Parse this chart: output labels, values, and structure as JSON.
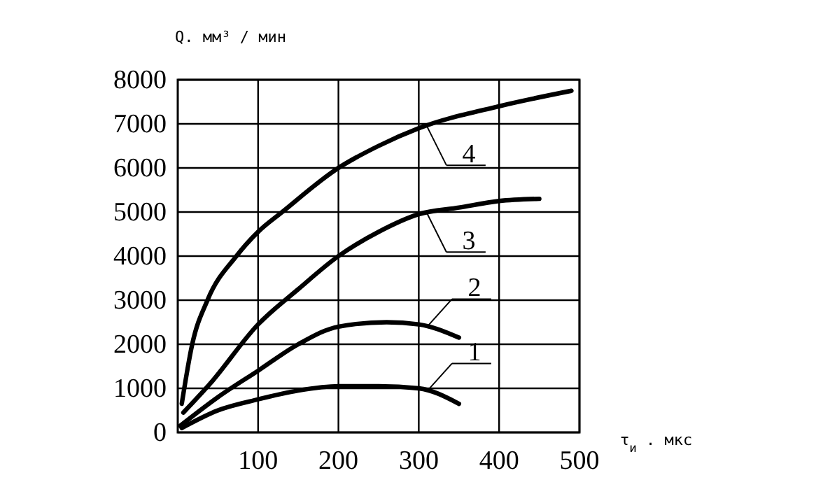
{
  "chart_data": {
    "type": "line",
    "xlabel": "τ$_{и}$ . мкс",
    "ylabel": "Q. мм³ / мин",
    "xlim": [
      0,
      500
    ],
    "xticks": [
      100,
      200,
      300,
      400,
      500
    ],
    "ylim": [
      0,
      8000
    ],
    "yticks": [
      0,
      1000,
      2000,
      3000,
      4000,
      5000,
      6000,
      7000,
      8000
    ],
    "grid": true,
    "legend": "right",
    "line_style": "solid",
    "series": [
      {
        "name": "4",
        "color": "#000000",
        "x": [
          5,
          18,
          37,
          73,
          100,
          130,
          200,
          250,
          300,
          400,
          490
        ],
        "values": [
          650,
          2000,
          3000,
          4000,
          4550,
          5000,
          6000,
          6500,
          6900,
          7400,
          7750
        ]
      },
      {
        "name": "3",
        "color": "#000000",
        "x": [
          7,
          40,
          100,
          150,
          200,
          250,
          300,
          350,
          400,
          450
        ],
        "values": [
          450,
          1100,
          2450,
          3250,
          4000,
          4550,
          4950,
          5100,
          5250,
          5300
        ]
      },
      {
        "name": "2",
        "color": "#000000",
        "x": [
          3,
          50,
          100,
          150,
          200,
          260,
          300,
          350
        ],
        "values": [
          150,
          800,
          1400,
          2000,
          2400,
          2500,
          2450,
          2150
        ]
      },
      {
        "name": "1",
        "color": "#000000",
        "x": [
          5,
          50,
          100,
          150,
          200,
          250,
          300,
          350
        ],
        "values": [
          100,
          500,
          750,
          950,
          1050,
          1050,
          1000,
          650
        ]
      }
    ]
  }
}
